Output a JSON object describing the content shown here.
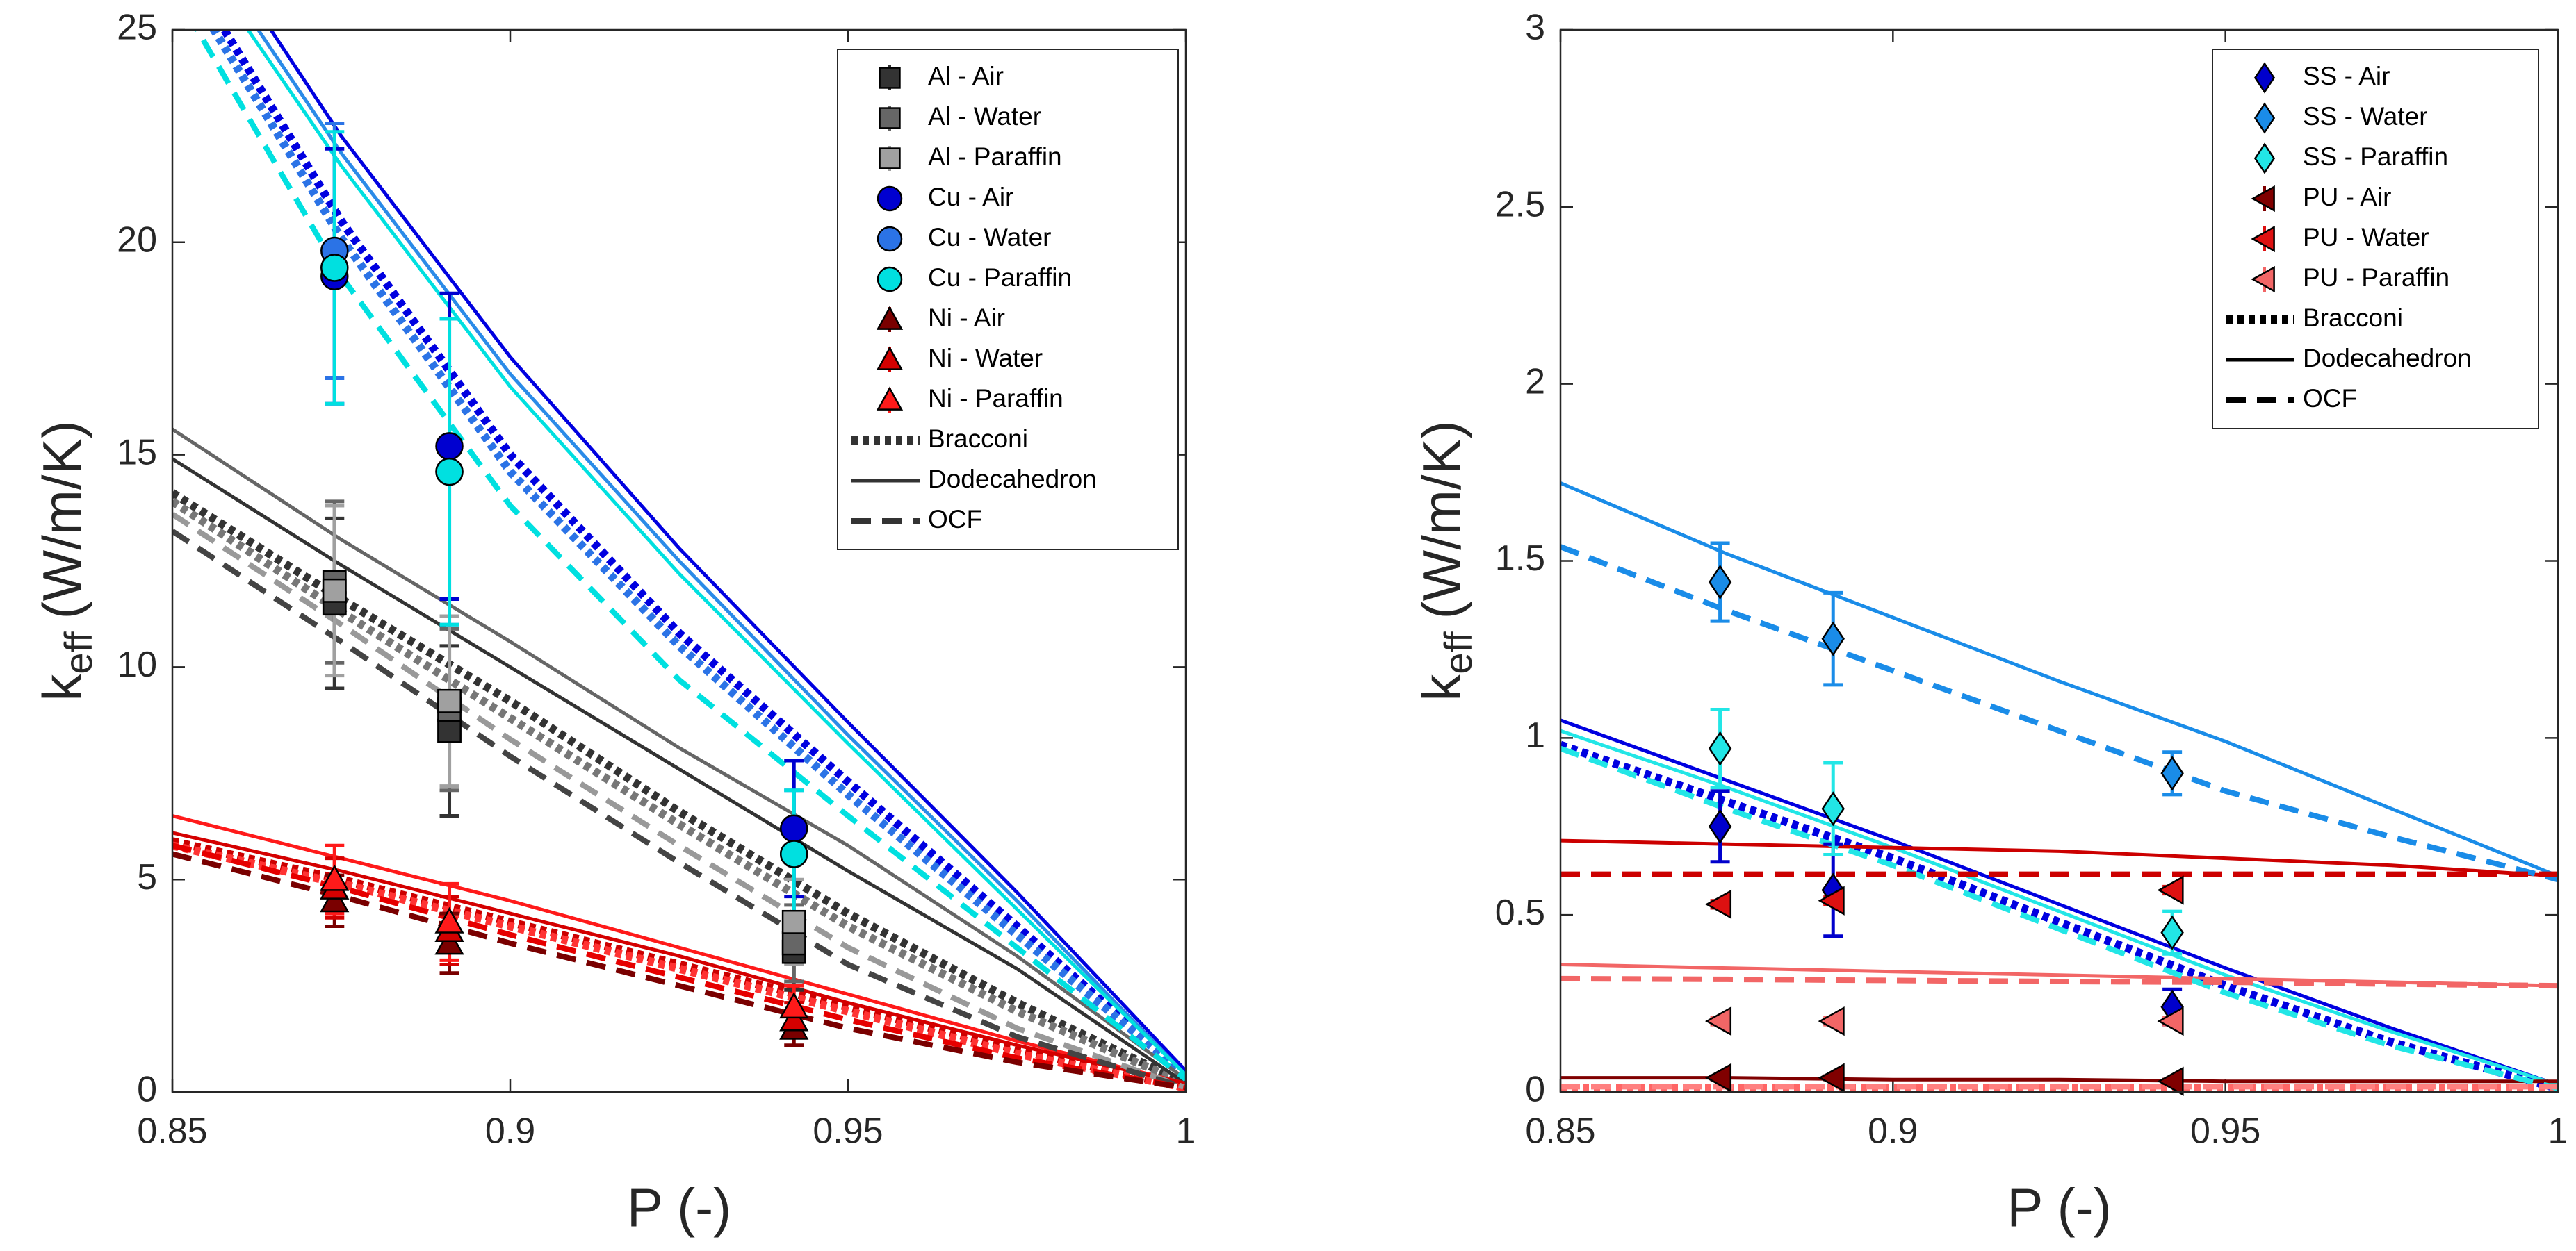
{
  "chart_data": [
    {
      "type": "scatter",
      "xlabel": "P (-)",
      "ylabel": {
        "symbol": "k",
        "subscript": "eff",
        "unit": "(W/m/K)"
      },
      "xlim": [
        0.85,
        1
      ],
      "ylim": [
        0,
        25
      ],
      "xticks": [
        0.85,
        0.9,
        0.95,
        1
      ],
      "yticks": [
        0,
        5,
        10,
        15,
        20,
        25
      ],
      "legend": "top-right",
      "x": [
        0.874,
        0.891,
        0.942
      ],
      "series": [
        {
          "name": "Al - Air",
          "color": "#333333",
          "marker": "square",
          "values": [
            11.5,
            8.5,
            3.3
          ],
          "errors": [
            2.0,
            2.0,
            0.9
          ]
        },
        {
          "name": "Al - Water",
          "color": "#666666",
          "marker": "square",
          "values": [
            12.0,
            9.0,
            3.5
          ],
          "errors": [
            1.9,
            1.9,
            0.9
          ]
        },
        {
          "name": "Al - Paraffin",
          "color": "#a0a0a0",
          "marker": "square",
          "values": [
            11.8,
            9.2,
            4.0
          ],
          "errors": [
            2.0,
            2.0,
            1.0
          ]
        },
        {
          "name": "Cu - Air",
          "color": "#0000d0",
          "marker": "circle",
          "values": [
            19.2,
            15.2,
            6.2
          ],
          "errors": [
            3.0,
            3.6,
            1.6
          ]
        },
        {
          "name": "Cu - Water",
          "color": "#2b73e6",
          "marker": "circle",
          "values": [
            19.8,
            14.6,
            5.6
          ],
          "errors": [
            3.0,
            3.6,
            1.5
          ]
        },
        {
          "name": "Cu - Paraffin",
          "color": "#00e0e0",
          "marker": "circle",
          "values": [
            19.4,
            14.6,
            5.6
          ],
          "errors": [
            3.2,
            3.6,
            1.5
          ]
        },
        {
          "name": "Ni - Air",
          "color": "#7a0000",
          "marker": "triangle",
          "values": [
            4.5,
            3.5,
            1.5
          ],
          "errors": [
            0.6,
            0.7,
            0.4
          ]
        },
        {
          "name": "Ni - Water",
          "color": "#d40000",
          "marker": "triangle",
          "values": [
            4.8,
            3.8,
            1.7
          ],
          "errors": [
            0.7,
            0.8,
            0.4
          ]
        },
        {
          "name": "Ni - Paraffin",
          "color": "#ff1a1a",
          "marker": "triangle",
          "values": [
            5.0,
            4.0,
            2.0
          ],
          "errors": [
            0.8,
            0.9,
            0.5
          ]
        }
      ],
      "curve_x": [
        0.85,
        0.875,
        0.9,
        0.925,
        0.95,
        0.975,
        1
      ],
      "models": [
        {
          "name": "Bracconi",
          "style": "dotted",
          "color": "#333333",
          "curves": [
            {
              "color": "#0000e0",
              "values": [
                27,
                20.5,
                15,
                10.8,
                7.3,
                3.9,
                0.4
              ]
            },
            {
              "color": "#2b73e6",
              "values": [
                26.6,
                20.1,
                14.6,
                10.5,
                7.0,
                3.7,
                0.4
              ]
            },
            {
              "color": "#333333",
              "values": [
                14.1,
                11.6,
                9.2,
                6.6,
                4.2,
                2.1,
                0.2
              ]
            },
            {
              "color": "#777777",
              "values": [
                13.9,
                11.3,
                8.8,
                6.3,
                3.9,
                1.9,
                0.2
              ]
            },
            {
              "color": "#cc0000",
              "values": [
                5.9,
                5.0,
                4.0,
                3.0,
                2.0,
                1.0,
                0.1
              ]
            },
            {
              "color": "#ff3333",
              "values": [
                5.8,
                4.9,
                3.9,
                2.9,
                1.9,
                0.9,
                0.1
              ]
            }
          ]
        },
        {
          "name": "Dodecahedron",
          "style": "solid",
          "color": "#333333",
          "curves": [
            {
              "color": "#0000e0",
              "values": [
                28.5,
                22.5,
                17.3,
                12.8,
                8.7,
                4.7,
                0.5
              ]
            },
            {
              "color": "#2b8be8",
              "values": [
                28,
                22.1,
                16.9,
                12.5,
                8.4,
                4.5,
                0.4
              ]
            },
            {
              "color": "#00e0e0",
              "values": [
                27.6,
                21.8,
                16.6,
                12.2,
                8.2,
                4.3,
                0.4
              ]
            },
            {
              "color": "#666666",
              "values": [
                15.6,
                13,
                10.6,
                8.1,
                5.8,
                3.2,
                0.3
              ]
            },
            {
              "color": "#333333",
              "values": [
                14.9,
                12.4,
                10,
                7.6,
                5.2,
                2.9,
                0.2
              ]
            },
            {
              "color": "#ff1a1a",
              "values": [
                6.5,
                5.5,
                4.5,
                3.4,
                2.3,
                1.2,
                0.2
              ]
            },
            {
              "color": "#d40000",
              "values": [
                6.1,
                5.2,
                4.2,
                3.2,
                2.1,
                1.1,
                0.2
              ]
            }
          ]
        },
        {
          "name": "OCF",
          "style": "dashed",
          "color": "#333333",
          "curves": [
            {
              "color": "#00e0e0",
              "values": [
                26,
                19.2,
                13.8,
                9.7,
                6.5,
                3.4,
                0.3
              ]
            },
            {
              "color": "#999999",
              "values": [
                13.6,
                11,
                8.3,
                5.8,
                3.4,
                1.5,
                0.1
              ]
            },
            {
              "color": "#444444",
              "values": [
                13.2,
                10.6,
                7.9,
                5.4,
                3.0,
                1.3,
                0.1
              ]
            },
            {
              "color": "#e60000",
              "values": [
                5.8,
                4.8,
                3.7,
                2.7,
                1.7,
                0.8,
                0.1
              ]
            },
            {
              "color": "#7a0000",
              "values": [
                5.6,
                4.6,
                3.5,
                2.5,
                1.5,
                0.7,
                0.1
              ]
            }
          ]
        }
      ]
    },
    {
      "type": "scatter",
      "xlabel": "P (-)",
      "ylabel": {
        "symbol": "k",
        "subscript": "eff",
        "unit": "(W/m/K)"
      },
      "xlim": [
        0.85,
        1
      ],
      "ylim": [
        0,
        3
      ],
      "xticks": [
        0.85,
        0.9,
        0.95,
        1
      ],
      "yticks": [
        0,
        0.5,
        1,
        1.5,
        2,
        2.5,
        3
      ],
      "legend": "top-right",
      "x": [
        0.874,
        0.891,
        0.942
      ],
      "series": [
        {
          "name": "SS - Air",
          "color": "#0000cc",
          "marker": "diamond",
          "values": [
            0.75,
            0.57,
            0.24
          ],
          "errors": [
            0.1,
            0.13,
            0.05
          ]
        },
        {
          "name": "SS - Water",
          "color": "#1a8ce8",
          "marker": "diamond",
          "values": [
            1.44,
            1.28,
            0.9
          ],
          "errors": [
            0.11,
            0.13,
            0.06
          ]
        },
        {
          "name": "SS - Paraffin",
          "color": "#22e6e6",
          "marker": "diamond",
          "values": [
            0.97,
            0.8,
            0.45
          ],
          "errors": [
            0.11,
            0.13,
            0.06
          ]
        },
        {
          "name": "PU - Air",
          "color": "#800000",
          "marker": "triangle-left",
          "values": [
            0.04,
            0.04,
            0.03
          ],
          "errors": [
            0.005,
            0.005,
            0.005
          ]
        },
        {
          "name": "PU - Water",
          "color": "#dd1111",
          "marker": "triangle-left",
          "values": [
            0.53,
            0.54,
            0.57
          ],
          "errors": [
            0.01,
            0.01,
            0.01
          ]
        },
        {
          "name": "PU - Paraffin",
          "color": "#f26666",
          "marker": "triangle-left",
          "values": [
            0.2,
            0.2,
            0.2
          ],
          "errors": [
            0.01,
            0.01,
            0.01
          ]
        }
      ],
      "curve_x": [
        0.85,
        0.875,
        0.9,
        0.925,
        0.95,
        0.975,
        1
      ],
      "models": [
        {
          "name": "Bracconi",
          "style": "dotted",
          "color": "#000000",
          "curves": [
            {
              "color": "#0000e0",
              "values": [
                0.98,
                0.82,
                0.66,
                0.48,
                0.3,
                0.14,
                0.01
              ]
            },
            {
              "color": "#ff6666",
              "values": [
                0.01,
                0.01,
                0.01,
                0.01,
                0.01,
                0.01,
                0.01
              ]
            }
          ]
        },
        {
          "name": "Dodecahedron",
          "style": "solid",
          "color": "#000000",
          "curves": [
            {
              "color": "#1a8ce8",
              "values": [
                1.72,
                1.52,
                1.34,
                1.16,
                0.99,
                0.8,
                0.61
              ]
            },
            {
              "color": "#0000e0",
              "values": [
                1.05,
                0.88,
                0.71,
                0.53,
                0.35,
                0.18,
                0.02
              ]
            },
            {
              "color": "#22e6e6",
              "values": [
                1.02,
                0.86,
                0.69,
                0.51,
                0.33,
                0.17,
                0.02
              ]
            },
            {
              "color": "#cc0000",
              "values": [
                0.71,
                0.7,
                0.69,
                0.68,
                0.66,
                0.64,
                0.61
              ]
            },
            {
              "color": "#f26666",
              "values": [
                0.36,
                0.35,
                0.34,
                0.33,
                0.32,
                0.31,
                0.3
              ]
            },
            {
              "color": "#800000",
              "values": [
                0.04,
                0.04,
                0.035,
                0.035,
                0.03,
                0.03,
                0.03
              ]
            }
          ]
        },
        {
          "name": "OCF",
          "style": "dashed",
          "color": "#000000",
          "curves": [
            {
              "color": "#1a8ce8",
              "values": [
                1.54,
                1.36,
                1.19,
                1.02,
                0.85,
                0.72,
                0.6
              ]
            },
            {
              "color": "#22e6e6",
              "values": [
                0.97,
                0.8,
                0.64,
                0.46,
                0.28,
                0.13,
                0.01
              ]
            },
            {
              "color": "#cc0000",
              "values": [
                0.615,
                0.615,
                0.615,
                0.615,
                0.615,
                0.615,
                0.615
              ]
            },
            {
              "color": "#f26666",
              "values": [
                0.32,
                0.318,
                0.315,
                0.312,
                0.31,
                0.305,
                0.3
              ]
            },
            {
              "color": "#ff8080",
              "values": [
                0.015,
                0.015,
                0.015,
                0.015,
                0.015,
                0.015,
                0.015
              ]
            }
          ]
        }
      ]
    }
  ]
}
